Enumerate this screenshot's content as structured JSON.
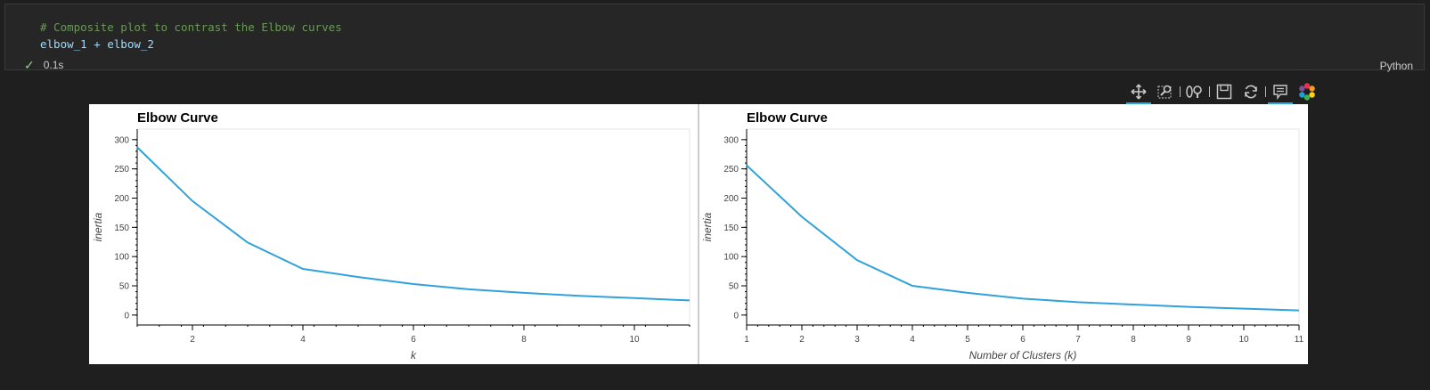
{
  "cell": {
    "code_lines": [
      "# Composite plot to contrast the Elbow curves",
      "elbow_1 + elbow_2"
    ],
    "status_time": "0.1s",
    "language": "Python"
  },
  "toolbar": {
    "tools": [
      "pan-icon",
      "box-zoom-icon",
      "wheel-zoom-icon",
      "save-icon",
      "reset-icon",
      "hover-icon",
      "bokeh-logo"
    ]
  },
  "colors": {
    "line": "#30a2da",
    "check": "#89d185",
    "comment": "#6a9955",
    "variable": "#9cdcfe"
  },
  "chart_data": [
    {
      "type": "line",
      "title": "Elbow Curve",
      "xlabel": "k",
      "ylabel": "inertia",
      "xlim": [
        1,
        11
      ],
      "ylim": [
        -17,
        318
      ],
      "xticks": [
        2,
        4,
        6,
        8,
        10
      ],
      "yticks": [
        0,
        50,
        100,
        150,
        200,
        250,
        300
      ],
      "grid": false,
      "series": [
        {
          "x": [
            1,
            2,
            3,
            4,
            5,
            6,
            7,
            8,
            9,
            10,
            11
          ],
          "y": [
            287,
            195,
            124,
            79,
            65,
            53,
            44,
            38,
            33,
            29,
            25
          ]
        }
      ]
    },
    {
      "type": "line",
      "title": "Elbow Curve",
      "xlabel": "Number of Clusters (k)",
      "ylabel": "inertia",
      "xlim": [
        1,
        11
      ],
      "ylim": [
        -17,
        318
      ],
      "xticks": [
        1,
        2,
        3,
        4,
        5,
        6,
        7,
        8,
        9,
        10,
        11
      ],
      "yticks": [
        0,
        50,
        100,
        150,
        200,
        250,
        300
      ],
      "grid": false,
      "series": [
        {
          "x": [
            1,
            2,
            3,
            4,
            5,
            6,
            7,
            8,
            9,
            10,
            11
          ],
          "y": [
            256,
            168,
            94,
            50,
            38,
            28,
            22,
            18,
            14,
            11,
            8
          ]
        }
      ]
    }
  ]
}
